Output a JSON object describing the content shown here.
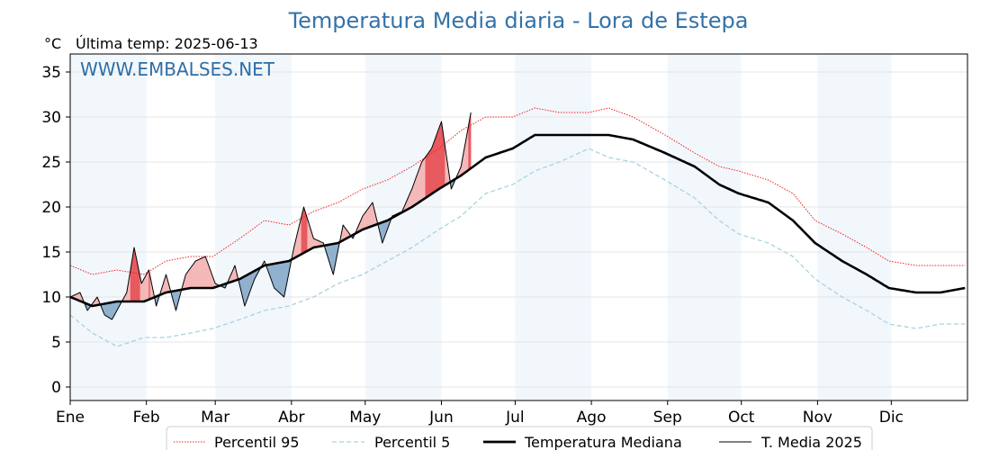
{
  "header": {
    "title": "Temperatura Media diaria - Lora de Estepa",
    "unit": "°C",
    "last_temp": "Última temp: 2025-06-13",
    "watermark": "WWW.EMBALSES.NET"
  },
  "chart_data": {
    "type": "line",
    "title": "Temperatura Media diaria - Lora de Estepa",
    "xlabel": "",
    "ylabel": "°C",
    "ylim": [
      -1.5,
      37
    ],
    "yticks": [
      0,
      5,
      10,
      15,
      20,
      25,
      30,
      35
    ],
    "grid": true,
    "legend_position": "bottom",
    "months": [
      "Ene",
      "Feb",
      "Mar",
      "Abr",
      "May",
      "Jun",
      "Jul",
      "Ago",
      "Sep",
      "Oct",
      "Nov",
      "Dic"
    ],
    "x_unit": "day of year",
    "xlim": [
      1,
      366
    ],
    "series": [
      {
        "name": "Percentil 95",
        "style": "dotted",
        "color": "#ee2222",
        "x": [
          1,
          10,
          20,
          31,
          40,
          50,
          59,
          70,
          80,
          90,
          100,
          110,
          120,
          130,
          140,
          151,
          160,
          170,
          181,
          190,
          200,
          212,
          220,
          230,
          243,
          255,
          265,
          273,
          285,
          295,
          304,
          315,
          325,
          334,
          345,
          355,
          365
        ],
        "values": [
          13.5,
          12.5,
          13.0,
          12.5,
          14.0,
          14.5,
          14.5,
          16.5,
          18.5,
          18.0,
          19.5,
          20.5,
          22.0,
          23.0,
          24.5,
          26.5,
          28.5,
          30.0,
          30.0,
          31.0,
          30.5,
          30.5,
          31.0,
          30.0,
          28.0,
          26.0,
          24.5,
          24.0,
          23.0,
          21.5,
          18.5,
          17.0,
          15.5,
          14.0,
          13.5,
          13.5,
          13.5
        ]
      },
      {
        "name": "Percentil 5",
        "style": "dashed",
        "color": "#a9d3e1",
        "x": [
          1,
          10,
          20,
          31,
          40,
          50,
          59,
          70,
          80,
          90,
          100,
          110,
          120,
          130,
          140,
          151,
          160,
          170,
          181,
          190,
          200,
          212,
          220,
          230,
          243,
          255,
          265,
          273,
          285,
          295,
          304,
          315,
          325,
          334,
          345,
          355,
          365
        ],
        "values": [
          8.0,
          6.0,
          4.5,
          5.5,
          5.5,
          6.0,
          6.5,
          7.5,
          8.5,
          9.0,
          10.0,
          11.5,
          12.5,
          14.0,
          15.5,
          17.5,
          19.0,
          21.5,
          22.5,
          24.0,
          25.0,
          26.5,
          25.5,
          25.0,
          23.0,
          21.0,
          18.5,
          17.0,
          16.0,
          14.5,
          12.0,
          10.0,
          8.5,
          7.0,
          6.5,
          7.0,
          7.0
        ]
      },
      {
        "name": "Temperatura Mediana",
        "style": "solid-thick",
        "color": "#000000",
        "x": [
          1,
          10,
          20,
          31,
          40,
          50,
          59,
          70,
          80,
          90,
          100,
          110,
          120,
          130,
          140,
          151,
          160,
          170,
          181,
          190,
          200,
          212,
          220,
          230,
          243,
          255,
          265,
          273,
          285,
          295,
          304,
          315,
          325,
          334,
          345,
          355,
          365
        ],
        "values": [
          10.0,
          9.0,
          9.5,
          9.5,
          10.5,
          11.0,
          11.0,
          12.0,
          13.5,
          14.0,
          15.5,
          16.0,
          17.5,
          18.5,
          20.0,
          22.0,
          23.5,
          25.5,
          26.5,
          28.0,
          28.0,
          28.0,
          28.0,
          27.5,
          26.0,
          24.5,
          22.5,
          21.5,
          20.5,
          18.5,
          16.0,
          14.0,
          12.5,
          11.0,
          10.5,
          10.5,
          11.0
        ]
      },
      {
        "name": "T. Media 2025",
        "style": "solid-thin",
        "color": "#000000",
        "x": [
          1,
          5,
          8,
          12,
          15,
          18,
          21,
          24,
          27,
          30,
          33,
          36,
          40,
          44,
          48,
          52,
          56,
          60,
          64,
          68,
          72,
          76,
          80,
          84,
          88,
          92,
          96,
          100,
          104,
          108,
          112,
          116,
          120,
          124,
          128,
          132,
          136,
          140,
          144,
          148,
          152,
          156,
          160,
          164
        ],
        "values": [
          10.0,
          10.5,
          8.5,
          10.0,
          8.0,
          7.5,
          9.0,
          10.5,
          15.5,
          11.5,
          13.0,
          9.0,
          12.5,
          8.5,
          12.5,
          14.0,
          14.5,
          11.5,
          11.0,
          13.5,
          9.0,
          12.0,
          14.0,
          11.0,
          10.0,
          15.5,
          20.0,
          16.5,
          16.0,
          12.5,
          18.0,
          16.5,
          19.0,
          20.5,
          16.0,
          19.0,
          19.5,
          22.0,
          25.0,
          26.5,
          29.5,
          22.0,
          24.5,
          30.5
        ]
      }
    ]
  },
  "legend": [
    {
      "label": "Percentil 95"
    },
    {
      "label": "Percentil 5"
    },
    {
      "label": "Temperatura Mediana"
    },
    {
      "label": "T. Media 2025"
    }
  ]
}
